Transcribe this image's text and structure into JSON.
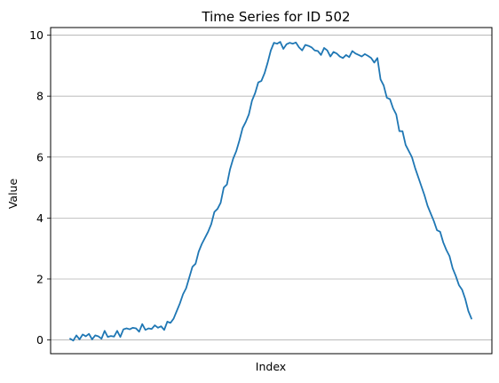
{
  "chart_data": {
    "type": "line",
    "title": "Time Series for ID 502",
    "xlabel": "Index",
    "ylabel": "Value",
    "ylim": [
      -0.45,
      10.25
    ],
    "yticks": [
      0,
      2,
      4,
      6,
      8,
      10
    ],
    "xticks_visible": false,
    "grid": "horizontal",
    "colors": {
      "line": "#1f77b4",
      "grid": "#b0b0b0",
      "axis": "#000000"
    },
    "series": [
      {
        "values": [
          0.04,
          -0.02,
          0.15,
          0.02,
          0.18,
          0.12,
          0.2,
          0.02,
          0.15,
          0.12,
          0.04,
          0.3,
          0.1,
          0.13,
          0.11,
          0.3,
          0.1,
          0.35,
          0.38,
          0.35,
          0.4,
          0.38,
          0.27,
          0.52,
          0.33,
          0.38,
          0.36,
          0.48,
          0.4,
          0.45,
          0.33,
          0.6,
          0.56,
          0.7,
          0.95,
          1.2,
          1.5,
          1.7,
          2.05,
          2.4,
          2.5,
          2.9,
          3.15,
          3.35,
          3.55,
          3.8,
          4.2,
          4.3,
          4.5,
          5.0,
          5.1,
          5.6,
          5.95,
          6.2,
          6.55,
          6.95,
          7.15,
          7.4,
          7.85,
          8.1,
          8.45,
          8.5,
          8.75,
          9.1,
          9.5,
          9.75,
          9.72,
          9.78,
          9.55,
          9.7,
          9.75,
          9.72,
          9.76,
          9.6,
          9.5,
          9.68,
          9.65,
          9.6,
          9.5,
          9.48,
          9.35,
          9.58,
          9.5,
          9.3,
          9.45,
          9.4,
          9.3,
          9.25,
          9.35,
          9.28,
          9.48,
          9.4,
          9.35,
          9.3,
          9.38,
          9.32,
          9.25,
          9.1,
          9.25,
          8.55,
          8.35,
          7.95,
          7.9,
          7.6,
          7.4,
          6.85,
          6.85,
          6.4,
          6.2,
          6.0,
          5.65,
          5.35,
          5.05,
          4.75,
          4.4,
          4.15,
          3.9,
          3.6,
          3.55,
          3.2,
          2.95,
          2.75,
          2.35,
          2.1,
          1.8,
          1.65,
          1.35,
          0.95,
          0.7
        ]
      }
    ]
  }
}
